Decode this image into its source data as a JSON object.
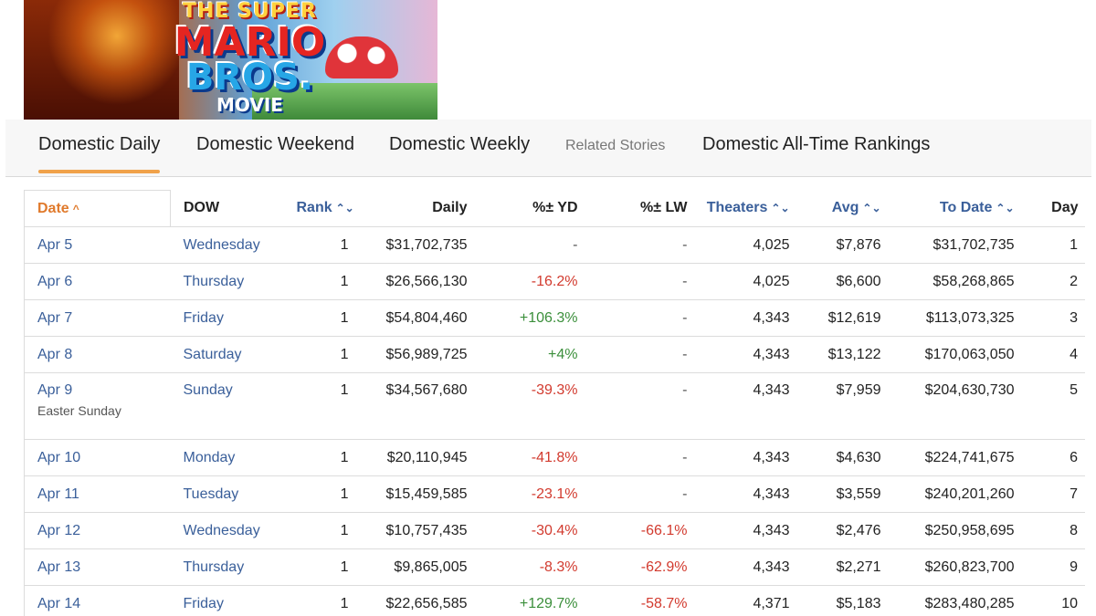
{
  "banner": {
    "logo_line1": "THE SUPER",
    "logo_line2": "MARIO",
    "logo_line3": "BROS.",
    "logo_line4": "MOVIE"
  },
  "tabs": [
    {
      "label": "Domestic Daily",
      "active": true
    },
    {
      "label": "Domestic Weekend",
      "active": false
    },
    {
      "label": "Domestic Weekly",
      "active": false
    },
    {
      "label": "Related Stories",
      "active": false
    },
    {
      "label": "Domestic All-Time Rankings",
      "active": false
    }
  ],
  "table": {
    "headers": {
      "date": "Date",
      "dow": "DOW",
      "rank": "Rank",
      "daily": "Daily",
      "yd": "%± YD",
      "lw": "%± LW",
      "theaters": "Theaters",
      "avg": "Avg",
      "to_date": "To Date",
      "day": "Day"
    },
    "sort_icons": {
      "date": "^",
      "sortable": "⌃⌄"
    },
    "rows": [
      {
        "date": "Apr 5",
        "note": "",
        "dow": "Wednesday",
        "rank": "1",
        "daily": "$31,702,735",
        "yd": "-",
        "lw": "-",
        "theaters": "4,025",
        "avg": "$7,876",
        "to_date": "$31,702,735",
        "day": "1"
      },
      {
        "date": "Apr 6",
        "note": "",
        "dow": "Thursday",
        "rank": "1",
        "daily": "$26,566,130",
        "yd": "-16.2%",
        "lw": "-",
        "theaters": "4,025",
        "avg": "$6,600",
        "to_date": "$58,268,865",
        "day": "2"
      },
      {
        "date": "Apr 7",
        "note": "",
        "dow": "Friday",
        "rank": "1",
        "daily": "$54,804,460",
        "yd": "+106.3%",
        "lw": "-",
        "theaters": "4,343",
        "avg": "$12,619",
        "to_date": "$113,073,325",
        "day": "3"
      },
      {
        "date": "Apr 8",
        "note": "",
        "dow": "Saturday",
        "rank": "1",
        "daily": "$56,989,725",
        "yd": "+4%",
        "lw": "-",
        "theaters": "4,343",
        "avg": "$13,122",
        "to_date": "$170,063,050",
        "day": "4"
      },
      {
        "date": "Apr 9",
        "note": "Easter Sunday",
        "dow": "Sunday",
        "rank": "1",
        "daily": "$34,567,680",
        "yd": "-39.3%",
        "lw": "-",
        "theaters": "4,343",
        "avg": "$7,959",
        "to_date": "$204,630,730",
        "day": "5"
      },
      {
        "date": "Apr 10",
        "note": "",
        "dow": "Monday",
        "rank": "1",
        "daily": "$20,110,945",
        "yd": "-41.8%",
        "lw": "-",
        "theaters": "4,343",
        "avg": "$4,630",
        "to_date": "$224,741,675",
        "day": "6"
      },
      {
        "date": "Apr 11",
        "note": "",
        "dow": "Tuesday",
        "rank": "1",
        "daily": "$15,459,585",
        "yd": "-23.1%",
        "lw": "-",
        "theaters": "4,343",
        "avg": "$3,559",
        "to_date": "$240,201,260",
        "day": "7"
      },
      {
        "date": "Apr 12",
        "note": "",
        "dow": "Wednesday",
        "rank": "1",
        "daily": "$10,757,435",
        "yd": "-30.4%",
        "lw": "-66.1%",
        "theaters": "4,343",
        "avg": "$2,476",
        "to_date": "$250,958,695",
        "day": "8"
      },
      {
        "date": "Apr 13",
        "note": "",
        "dow": "Thursday",
        "rank": "1",
        "daily": "$9,865,005",
        "yd": "-8.3%",
        "lw": "-62.9%",
        "theaters": "4,343",
        "avg": "$2,271",
        "to_date": "$260,823,700",
        "day": "9"
      },
      {
        "date": "Apr 14",
        "note": "",
        "dow": "Friday",
        "rank": "1",
        "daily": "$22,656,585",
        "yd": "+129.7%",
        "lw": "-58.7%",
        "theaters": "4,371",
        "avg": "$5,183",
        "to_date": "$283,480,285",
        "day": "10"
      }
    ]
  },
  "colors": {
    "accent_orange": "#f0a24a",
    "link_blue": "#3a5f9a",
    "negative_red": "#d23a2e",
    "positive_green": "#3b8f3b"
  }
}
